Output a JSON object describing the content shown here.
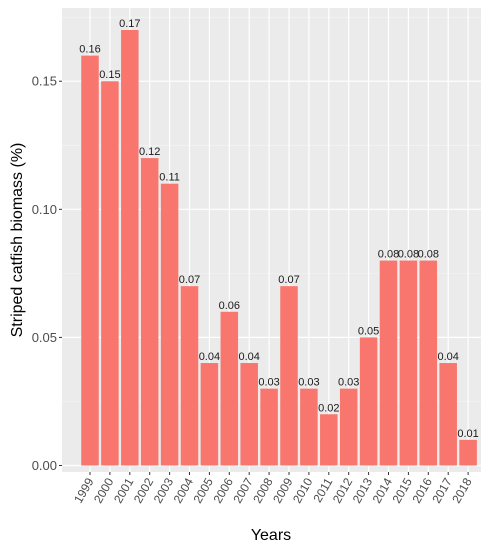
{
  "chart_data": {
    "type": "bar",
    "xlabel": "Years",
    "ylabel": "Striped catfish biomass (%)",
    "ylim": [
      0,
      0.178
    ],
    "yticks": [
      0.0,
      0.05,
      0.1,
      0.15
    ],
    "ytick_labels": [
      "0.00",
      "0.05",
      "0.10",
      "0.15"
    ],
    "grid": true,
    "bar_color": "#F8766D",
    "panel_color": "#EBEBEB",
    "categories": [
      "1999",
      "2000",
      "2001",
      "2002",
      "2003",
      "2004",
      "2005",
      "2006",
      "2007",
      "2008",
      "2009",
      "2010",
      "2011",
      "2012",
      "2013",
      "2014",
      "2015",
      "2016",
      "2017",
      "2018"
    ],
    "values": [
      0.16,
      0.15,
      0.17,
      0.12,
      0.11,
      0.07,
      0.04,
      0.06,
      0.04,
      0.03,
      0.07,
      0.03,
      0.02,
      0.03,
      0.05,
      0.08,
      0.08,
      0.08,
      0.04,
      0.01
    ],
    "data_labels": [
      "0.16",
      "0.15",
      "0.17",
      "0.12",
      "0.11",
      "0.07",
      "0.04",
      "0.06",
      "0.04",
      "0.03",
      "0.07",
      "0.03",
      "0.02",
      "0.03",
      "0.05",
      "0.08",
      "0.08",
      "0.08",
      "0.04",
      "0.01"
    ]
  }
}
